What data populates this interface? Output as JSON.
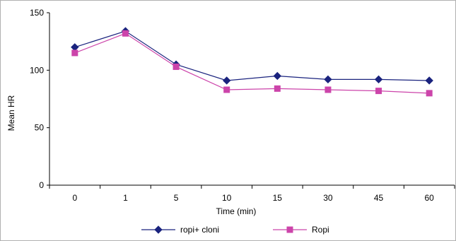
{
  "chart_data": {
    "type": "line",
    "title": "",
    "xlabel": "Time (min)",
    "ylabel": "Mean HR",
    "categories": [
      "0",
      "1",
      "5",
      "10",
      "15",
      "30",
      "45",
      "60"
    ],
    "ylim": [
      0,
      150
    ],
    "yticks": [
      0,
      50,
      100,
      150
    ],
    "legend_position": "bottom",
    "grid": false,
    "series": [
      {
        "name": "ropi+ cloni",
        "color": "#1a237e",
        "marker": "diamond",
        "values": [
          120,
          134,
          105,
          91,
          95,
          92,
          92,
          91
        ]
      },
      {
        "name": "Ropi",
        "color": "#cc44aa",
        "marker": "square",
        "values": [
          115,
          132,
          103,
          83,
          84,
          83,
          82,
          80
        ]
      }
    ]
  }
}
